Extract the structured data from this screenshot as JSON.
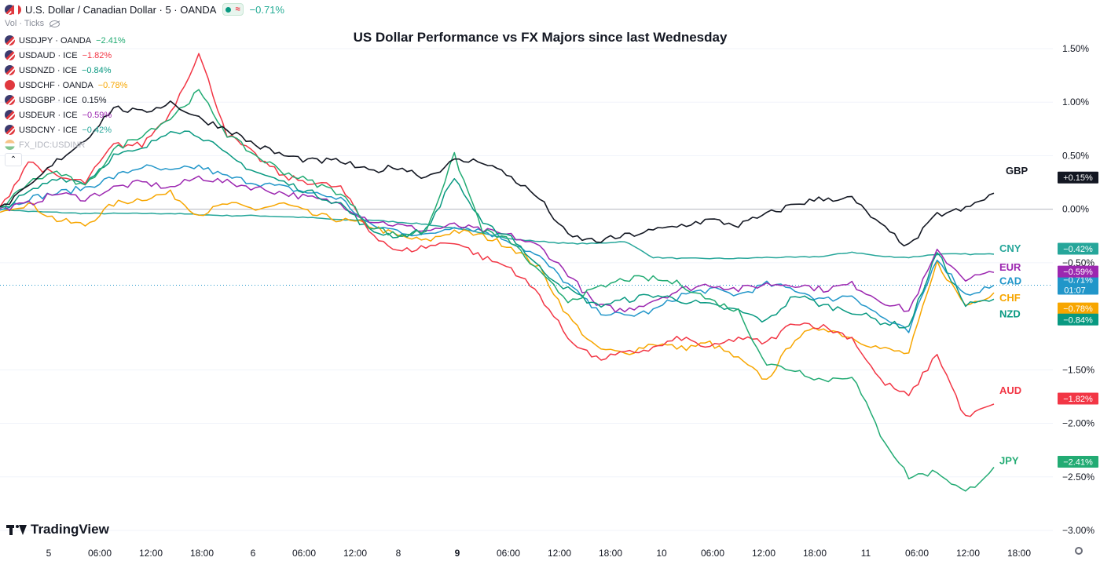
{
  "header": {
    "symbol_title": "U.S. Dollar / Canadian Dollar · 5 · OANDA",
    "approx_badge": "≈",
    "change": "−0.71%",
    "volume_label": "Vol · Ticks"
  },
  "legend": {
    "items": [
      {
        "label": "USDJPY · OANDA",
        "change": "−2.41%",
        "color": "#22ab73",
        "flag": "us"
      },
      {
        "label": "USDAUD · ICE",
        "change": "−1.82%",
        "color": "#f23645",
        "flag": "us"
      },
      {
        "label": "USDNZD · ICE",
        "change": "−0.84%",
        "color": "#089981",
        "flag": "us"
      },
      {
        "label": "USDCHF · OANDA",
        "change": "−0.78%",
        "color": "#f7a600",
        "flag": "ch"
      },
      {
        "label": "USDGBP · ICE",
        "change": "0.15%",
        "color": "#131722",
        "flag": "us"
      },
      {
        "label": "USDEUR · ICE",
        "change": "−0.59%",
        "color": "#9c27b0",
        "flag": "us"
      },
      {
        "label": "USDCNY · ICE",
        "change": "−0.42%",
        "color": "#26a69a",
        "flag": "us"
      },
      {
        "label": "FX_IDC:USDINR",
        "change": "",
        "color": "#b2b5be",
        "flag": "in"
      }
    ],
    "collapse_glyph": "⌃"
  },
  "branding": {
    "logo_text": "TradingView",
    "settings_icon": "gear-icon"
  },
  "chart_data": {
    "type": "line",
    "title": "US Dollar Performance vs FX Majors since last Wednesday",
    "y_unit": "%",
    "ylim": [
      -3.0,
      1.5
    ],
    "y_ticks": [
      "1.50%",
      "1.00%",
      "0.50%",
      "0.00%",
      "−0.50%",
      "−1.50%",
      "−2.00%",
      "−2.50%",
      "−3.00%"
    ],
    "y_tick_values": [
      1.5,
      1.0,
      0.5,
      0.0,
      -0.5,
      -1.5,
      -2.0,
      -2.5,
      -3.0
    ],
    "x_ticks": [
      "5",
      "06:00",
      "12:00",
      "18:00",
      "6",
      "06:00",
      "12:00",
      "8",
      "9",
      "06:00",
      "12:00",
      "18:00",
      "10",
      "06:00",
      "12:00",
      "18:00",
      "11",
      "06:00",
      "12:00",
      "18:00"
    ],
    "x_tick_bold": [
      "9"
    ],
    "series": [
      {
        "name": "GBP",
        "color": "#131722",
        "final_label": "+0.15%",
        "values": [
          0.0,
          0.2,
          0.45,
          0.65,
          0.95,
          0.9,
          1.0,
          0.85,
          0.75,
          0.6,
          0.5,
          0.45,
          0.45,
          0.35,
          0.4,
          0.3,
          0.45,
          0.45,
          0.3,
          0.1,
          -0.25,
          -0.3,
          -0.25,
          -0.2,
          -0.15,
          -0.1,
          -0.15,
          -0.05,
          0.05,
          0.1,
          0.1,
          -0.15,
          -0.35,
          -0.05,
          0.0,
          0.15
        ]
      },
      {
        "name": "CNY",
        "color": "#26a69a",
        "final_label": "−0.42%",
        "values": [
          0.0,
          -0.02,
          -0.03,
          -0.04,
          -0.04,
          -0.04,
          -0.04,
          -0.05,
          -0.06,
          -0.06,
          -0.07,
          -0.08,
          -0.1,
          -0.1,
          -0.12,
          -0.14,
          -0.18,
          -0.22,
          -0.28,
          -0.3,
          -0.32,
          -0.32,
          -0.3,
          -0.45,
          -0.46,
          -0.46,
          -0.46,
          -0.45,
          -0.45,
          -0.44,
          -0.4,
          -0.44,
          -0.45,
          -0.42,
          -0.42,
          -0.42
        ]
      },
      {
        "name": "EUR",
        "color": "#9c27b0",
        "final_label": "−0.59%",
        "values": [
          0.0,
          0.05,
          0.15,
          0.1,
          0.2,
          0.25,
          0.2,
          0.3,
          0.25,
          0.2,
          0.15,
          0.1,
          0.05,
          -0.1,
          -0.15,
          -0.2,
          -0.15,
          -0.2,
          -0.25,
          -0.35,
          -0.6,
          -0.9,
          -0.95,
          -0.85,
          -0.75,
          -0.7,
          -0.75,
          -0.7,
          -0.7,
          -0.75,
          -0.7,
          -0.85,
          -0.95,
          -0.4,
          -0.65,
          -0.59
        ]
      },
      {
        "name": "CAD",
        "color": "#2196c9",
        "final_label": "−0.71%",
        "values": [
          0.0,
          0.1,
          0.15,
          0.2,
          0.3,
          0.4,
          0.35,
          0.4,
          0.3,
          0.25,
          0.2,
          0.15,
          0.1,
          -0.15,
          -0.2,
          -0.25,
          -0.15,
          -0.2,
          -0.3,
          -0.45,
          -0.7,
          -0.95,
          -1.0,
          -0.95,
          -0.8,
          -0.75,
          -0.8,
          -0.7,
          -0.75,
          -0.85,
          -0.8,
          -1.0,
          -1.15,
          -0.45,
          -0.8,
          -0.71
        ]
      },
      {
        "name": "CHF",
        "color": "#f7a600",
        "final_label": "−0.78%",
        "values": [
          0.0,
          0.05,
          -0.1,
          -0.15,
          0.05,
          0.1,
          0.15,
          -0.05,
          0.05,
          0.0,
          0.05,
          -0.05,
          -0.1,
          -0.15,
          -0.25,
          -0.3,
          -0.2,
          -0.25,
          -0.35,
          -0.55,
          -1.0,
          -1.3,
          -1.35,
          -1.25,
          -1.3,
          -1.25,
          -1.4,
          -1.6,
          -1.2,
          -1.1,
          -1.2,
          -1.3,
          -1.35,
          -0.5,
          -0.9,
          -0.78
        ]
      },
      {
        "name": "NZD",
        "color": "#089981",
        "final_label": "−0.84%",
        "values": [
          0.0,
          0.15,
          0.3,
          0.25,
          0.5,
          0.55,
          0.75,
          0.7,
          0.5,
          0.35,
          0.25,
          0.15,
          0.05,
          -0.2,
          -0.25,
          -0.2,
          0.3,
          -0.15,
          -0.25,
          -0.55,
          -0.75,
          -0.9,
          -0.85,
          -0.8,
          -0.85,
          -0.9,
          -0.95,
          -1.05,
          -0.8,
          -0.9,
          -0.95,
          -1.05,
          -1.1,
          -0.4,
          -0.9,
          -0.84
        ]
      },
      {
        "name": "AUD",
        "color": "#f23645",
        "final_label": "−1.82%",
        "values": [
          0.0,
          0.45,
          0.3,
          0.25,
          0.6,
          0.6,
          0.9,
          1.45,
          0.7,
          0.5,
          0.3,
          0.25,
          0.2,
          -0.2,
          -0.4,
          -0.35,
          -0.3,
          -0.45,
          -0.55,
          -0.8,
          -1.2,
          -1.4,
          -1.35,
          -1.3,
          -1.2,
          -1.3,
          -1.2,
          -1.25,
          -1.05,
          -1.1,
          -1.2,
          -1.6,
          -1.75,
          -1.35,
          -1.95,
          -1.82
        ]
      },
      {
        "name": "JPY",
        "color": "#22ab73",
        "final_label": "−2.41%",
        "values": [
          0.0,
          0.25,
          0.35,
          0.2,
          0.55,
          0.7,
          0.85,
          1.1,
          0.7,
          0.5,
          0.35,
          0.25,
          0.15,
          -0.15,
          -0.25,
          -0.2,
          0.5,
          -0.2,
          -0.3,
          -0.6,
          -0.85,
          -0.75,
          -0.65,
          -0.65,
          -0.7,
          -0.85,
          -0.95,
          -1.45,
          -1.5,
          -1.6,
          -1.55,
          -2.1,
          -2.5,
          -2.45,
          -2.65,
          -2.41
        ]
      }
    ],
    "current_series": {
      "name": "CAD",
      "countdown": "01:07"
    },
    "legend_placement": "top-left",
    "grid": true
  }
}
